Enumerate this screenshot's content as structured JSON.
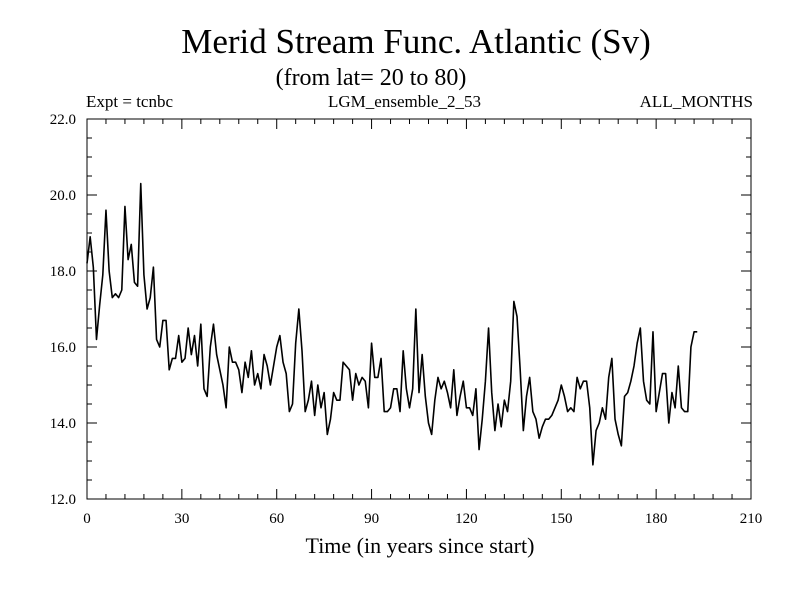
{
  "chart_data": {
    "type": "line",
    "title": "Merid Stream Func. Atlantic (Sv)",
    "subtitle": "(from lat= 20 to 80)",
    "left_label": "Expt = tcnbc",
    "center_label": "LGM_ensemble_2_53",
    "right_label": "ALL_MONTHS",
    "xlabel": "Time (in years since start)",
    "ylabel": "",
    "xlim": [
      0,
      210
    ],
    "ylim": [
      12.0,
      22.0
    ],
    "x_ticks": [
      0,
      30,
      60,
      90,
      120,
      150,
      180,
      210
    ],
    "x_tick_labels": [
      "0",
      "30",
      "60",
      "90",
      "120",
      "150",
      "180",
      "210"
    ],
    "y_ticks": [
      12,
      14,
      16,
      18,
      20,
      22
    ],
    "y_tick_labels": [
      "12.0",
      "14.0",
      "16.0",
      "18.0",
      "20.0",
      "22.0"
    ],
    "grid": false,
    "series": [
      {
        "name": "Merid Stream Func. Atlantic",
        "x_start": 0,
        "x_step": 1,
        "values": [
          18.2,
          18.9,
          18.1,
          16.2,
          17.1,
          17.9,
          19.6,
          18.0,
          17.3,
          17.4,
          17.3,
          17.5,
          19.7,
          18.3,
          18.7,
          17.7,
          17.6,
          20.3,
          17.9,
          17.0,
          17.3,
          18.1,
          16.2,
          16.0,
          16.7,
          16.7,
          15.4,
          15.7,
          15.7,
          16.3,
          15.6,
          15.7,
          16.5,
          15.8,
          16.3,
          15.5,
          16.6,
          14.9,
          14.7,
          16.0,
          16.6,
          15.8,
          15.4,
          15.0,
          14.4,
          16.0,
          15.6,
          15.6,
          15.4,
          14.8,
          15.6,
          15.2,
          15.9,
          15.0,
          15.3,
          14.9,
          15.8,
          15.5,
          15.0,
          15.5,
          16.0,
          16.3,
          15.6,
          15.3,
          14.3,
          14.5,
          16.1,
          17.0,
          15.9,
          14.3,
          14.6,
          15.1,
          14.2,
          15.0,
          14.4,
          14.8,
          13.7,
          14.1,
          14.8,
          14.6,
          14.6,
          15.6,
          15.5,
          15.4,
          14.6,
          15.3,
          15.0,
          15.2,
          15.1,
          14.4,
          16.1,
          15.2,
          15.2,
          15.7,
          14.3,
          14.3,
          14.4,
          14.9,
          14.9,
          14.3,
          15.9,
          14.9,
          14.4,
          14.9,
          17.0,
          14.8,
          15.8,
          14.7,
          14.0,
          13.7,
          14.6,
          15.2,
          14.9,
          15.1,
          14.8,
          14.4,
          15.4,
          14.2,
          14.7,
          15.1,
          14.4,
          14.4,
          14.2,
          14.9,
          13.3,
          14.1,
          15.1,
          16.5,
          14.8,
          13.8,
          14.5,
          13.9,
          14.6,
          14.3,
          15.1,
          17.2,
          16.8,
          15.4,
          13.8,
          14.7,
          15.2,
          14.3,
          14.1,
          13.6,
          13.9,
          14.1,
          14.1,
          14.2,
          14.4,
          14.6,
          15.0,
          14.7,
          14.3,
          14.4,
          14.3,
          15.2,
          14.9,
          15.1,
          15.1,
          14.4,
          12.9,
          13.8,
          14.0,
          14.4,
          14.1,
          15.2,
          15.7,
          14.1,
          13.7,
          13.4,
          14.7,
          14.8,
          15.1,
          15.5,
          16.1,
          16.5,
          15.1,
          14.6,
          14.5,
          16.4,
          14.3,
          14.8,
          15.3,
          15.3,
          14.0,
          14.8,
          14.4,
          15.5,
          14.4,
          14.3,
          14.3,
          16.0,
          16.4,
          16.4
        ]
      }
    ]
  }
}
